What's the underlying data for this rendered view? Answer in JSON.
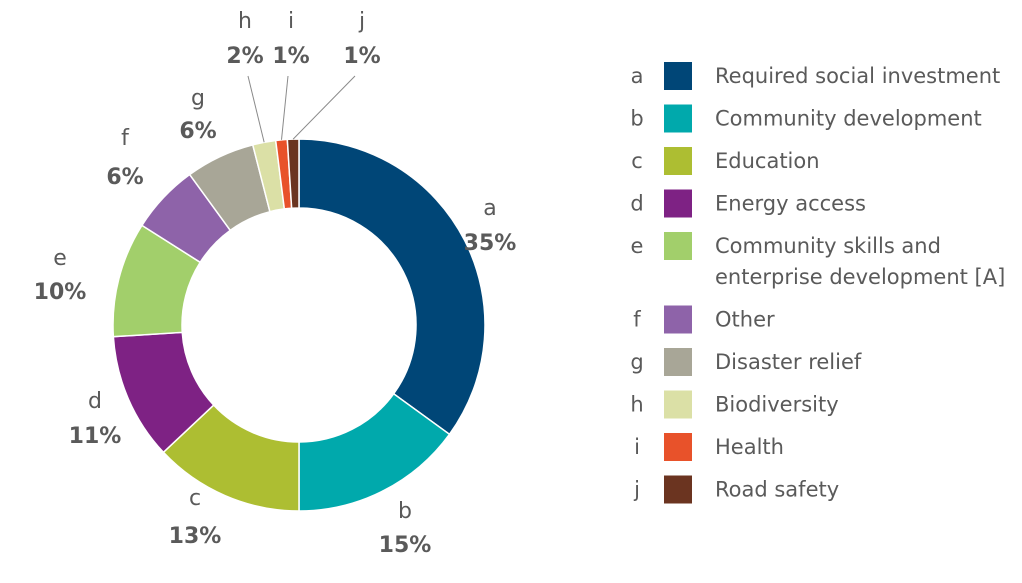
{
  "chart_data": {
    "type": "pie",
    "style": "donut",
    "title": "",
    "slices": [
      {
        "key": "a",
        "label": "Required social investment",
        "value": 35,
        "pct_label": "35%",
        "color": "#004677"
      },
      {
        "key": "b",
        "label": "Community development",
        "value": 15,
        "pct_label": "15%",
        "color": "#00a9ac"
      },
      {
        "key": "c",
        "label": "Education",
        "value": 13,
        "pct_label": "13%",
        "color": "#adbe32"
      },
      {
        "key": "d",
        "label": "Energy access",
        "value": 11,
        "pct_label": "11%",
        "color": "#7e2284"
      },
      {
        "key": "e",
        "label": "Community skills and enterprise development [A]",
        "label_lines": [
          "Community skills and",
          "enterprise development [A]"
        ],
        "value": 10,
        "pct_label": "10%",
        "color": "#a2cf6b"
      },
      {
        "key": "f",
        "label": "Other",
        "value": 6,
        "pct_label": "6%",
        "color": "#8e63a9"
      },
      {
        "key": "g",
        "label": "Disaster relief",
        "value": 6,
        "pct_label": "6%",
        "color": "#a8a697"
      },
      {
        "key": "h",
        "label": "Biodiversity",
        "value": 2,
        "pct_label": "2%",
        "color": "#dbe0a6"
      },
      {
        "key": "i",
        "label": "Health",
        "value": 1,
        "pct_label": "1%",
        "color": "#e8522a"
      },
      {
        "key": "j",
        "label": "Road safety",
        "value": 1,
        "pct_label": "1%",
        "color": "#6b3420"
      }
    ],
    "legend_position": "right"
  }
}
